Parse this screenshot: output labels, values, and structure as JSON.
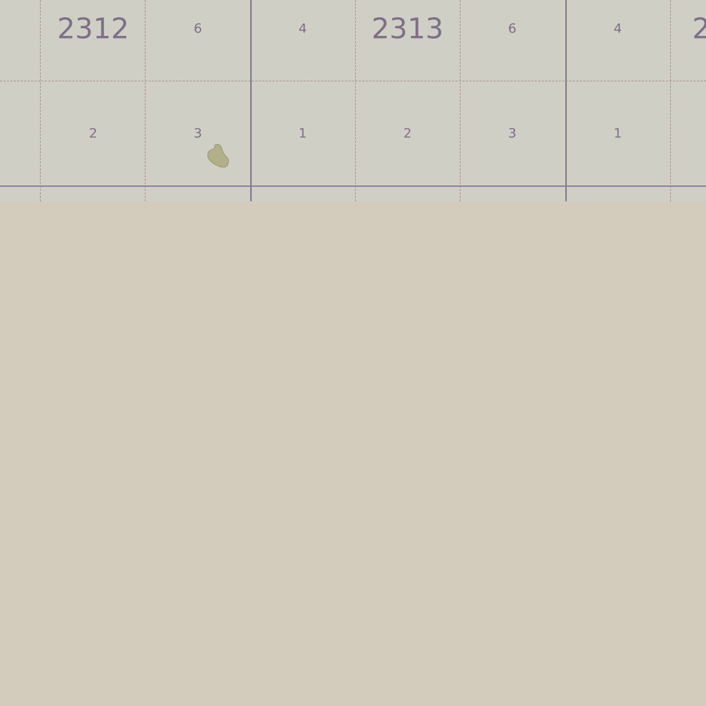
{
  "map": {
    "colors": {
      "land": "#d3ccbc",
      "grid_area": "#d0cfc6",
      "major_line": "#7e7487",
      "minor_line": "#a58f8a",
      "label": "#7d6f86",
      "feature_fill": "#b2b08b"
    },
    "block_labels": [
      "2312",
      "2313",
      "2"
    ],
    "cell_labels_row1": [
      "6",
      "4",
      "6",
      "4"
    ],
    "cell_labels_row2": [
      "2",
      "3",
      "1",
      "2",
      "3",
      "1"
    ],
    "features": [
      {
        "type": "small-polygon",
        "description": "green patch",
        "icon": "vegetation-patch-icon"
      }
    ]
  }
}
